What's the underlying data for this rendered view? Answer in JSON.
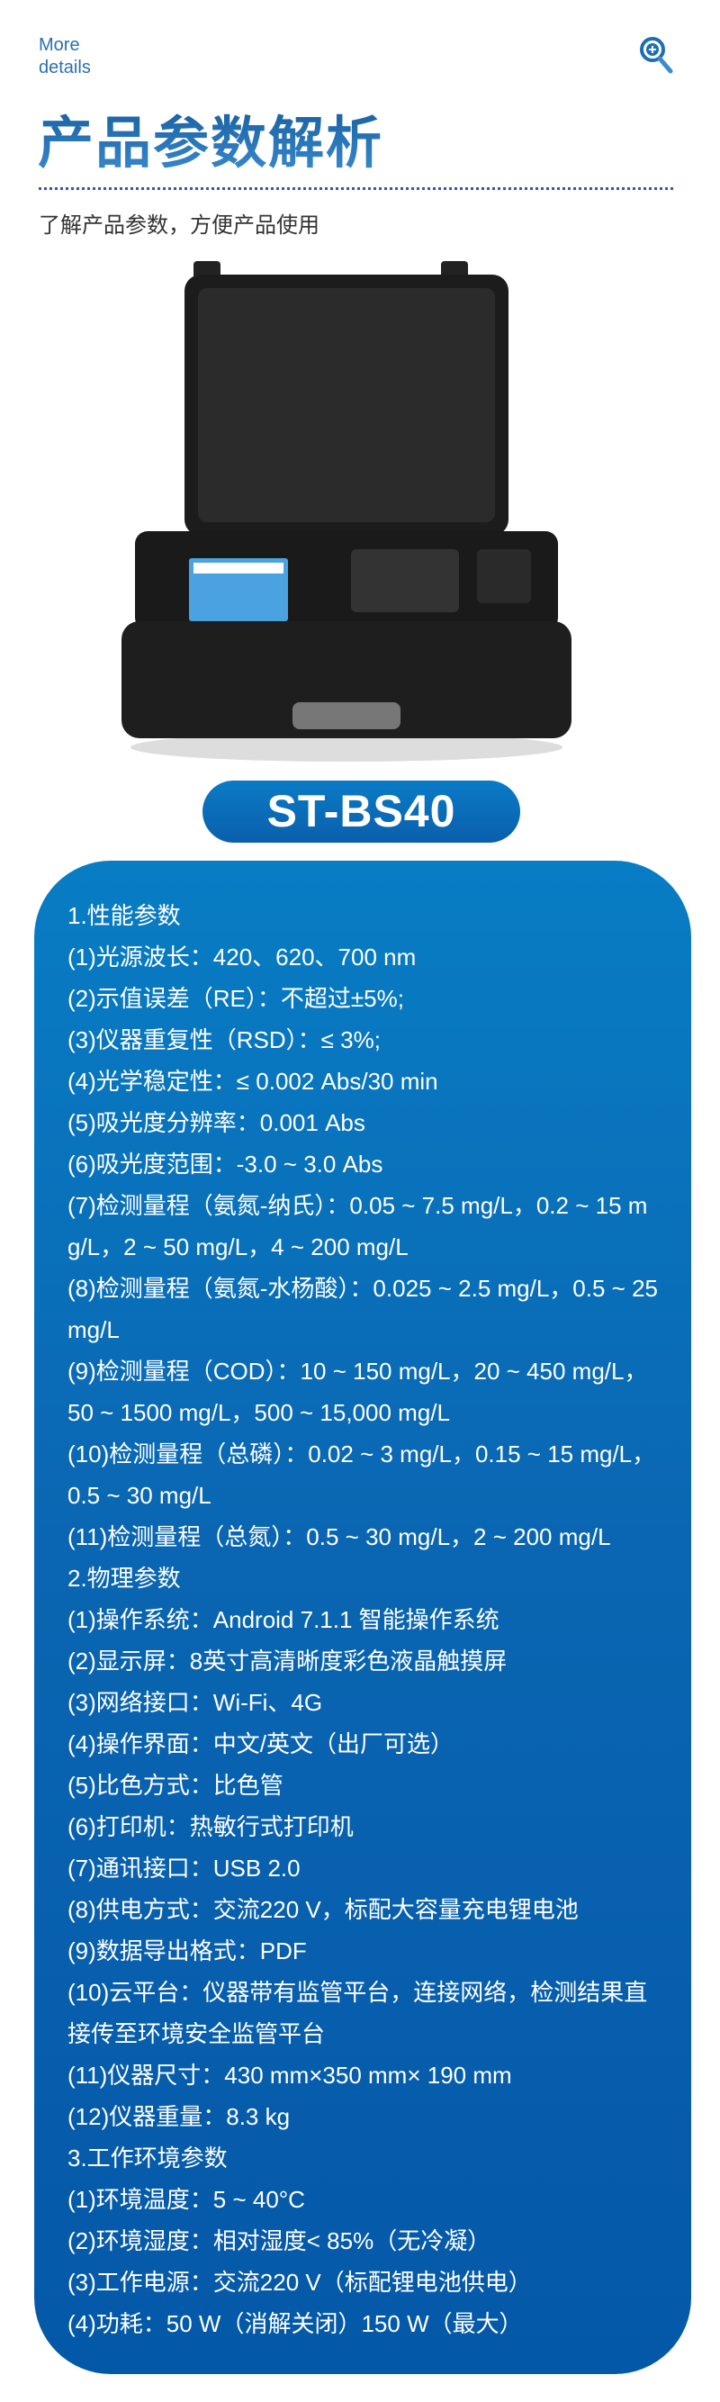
{
  "header": {
    "more": "More",
    "details": "details",
    "title": "产品参数解析",
    "subtitle": "了解产品参数，方便产品使用",
    "icon": "zoom-in-icon"
  },
  "model": "ST-BS40",
  "colors": {
    "accent": "#0a6cb8",
    "title": "#1f6aaa"
  },
  "params": [
    "1.性能参数",
    "(1)光源波长：420、620、700 nm",
    "(2)示值误差（RE）：不超过±5%;",
    "(3)仪器重复性（RSD）：≤ 3%;",
    "(4)光学稳定性：≤ 0.002 Abs/30 min",
    "(5)吸光度分辨率：0.001 Abs",
    "(6)吸光度范围：-3.0 ~ 3.0 Abs",
    "(7)检测量程（氨氮-纳氏）：0.05 ~ 7.5 mg/L，0.2 ~ 15 mg/L，2 ~ 50 mg/L，4 ~ 200 mg/L",
    "(8)检测量程（氨氮-水杨酸）：0.025 ~ 2.5 mg/L，0.5 ~ 25 mg/L",
    "(9)检测量程（COD）：10 ~ 150 mg/L，20 ~ 450 mg/L，50 ~ 1500 mg/L，500 ~ 15,000 mg/L",
    "(10)检测量程（总磷）：0.02 ~ 3 mg/L，0.15 ~ 15 mg/L，0.5 ~ 30 mg/L",
    "(11)检测量程（总氮）：0.5 ~ 30 mg/L，2 ~ 200 mg/L",
    "2.物理参数",
    "(1)操作系统：Android 7.1.1 智能操作系统",
    "(2)显示屏：8英寸高清晰度彩色液晶触摸屏",
    "(3)网络接口：Wi-Fi、4G",
    "(4)操作界面：中文/英文（出厂可选）",
    "(5)比色方式：比色管",
    "(6)打印机：热敏行式打印机",
    "(7)通讯接口：USB 2.0",
    "(8)供电方式：交流220 V，标配大容量充电锂电池",
    "(9)数据导出格式：PDF",
    "(10)云平台：仪器带有监管平台，连接网络，检测结果直接传至环境安全监管平台",
    "(11)仪器尺寸：430 mm×350 mm× 190 mm",
    "(12)仪器重量：8.3 kg",
    "3.工作环境参数",
    "(1)环境温度：5 ~ 40°C",
    "(2)环境湿度：相对湿度< 85%（无冷凝）",
    "(3)工作电源：交流220 V（标配锂电池供电）",
    "(4)功耗：50 W（消解关闭）150 W（最大）"
  ]
}
